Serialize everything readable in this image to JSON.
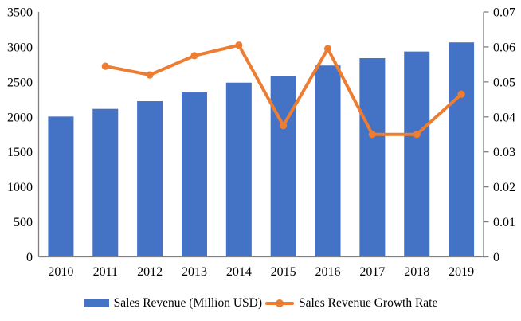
{
  "chart_data": {
    "type": "bar+line",
    "title": "",
    "categories": [
      "2010",
      "2011",
      "2012",
      "2013",
      "2014",
      "2015",
      "2016",
      "2017",
      "2018",
      "2019"
    ],
    "series": [
      {
        "name": "Sales Revenue (Million USD)",
        "type": "bar",
        "axis": "left",
        "color": "#4472C4",
        "values": [
          2005,
          2115,
          2225,
          2350,
          2490,
          2580,
          2735,
          2840,
          2935,
          3065
        ]
      },
      {
        "name": "Sales Revenue Growth Rate",
        "type": "line",
        "axis": "right",
        "color": "#ED7D31",
        "values": [
          null,
          0.0545,
          0.052,
          0.0575,
          0.0605,
          0.0375,
          0.0595,
          0.035,
          0.035,
          0.0465
        ]
      }
    ],
    "left_axis": {
      "min": 0,
      "max": 3500,
      "step": 500,
      "ticks": [
        "0",
        "500",
        "1000",
        "1500",
        "2000",
        "2500",
        "3000",
        "3500"
      ]
    },
    "right_axis": {
      "min": 0,
      "max": 0.07,
      "step": 0.01,
      "ticks": [
        "0",
        "0.01",
        "0.02",
        "0.03",
        "0.04",
        "0.05",
        "0.06",
        "0.07"
      ]
    },
    "grid": false,
    "legend_position": "bottom",
    "axis_color": "#808080",
    "text_color": "#000000",
    "background_color": "#FFFFFF"
  }
}
